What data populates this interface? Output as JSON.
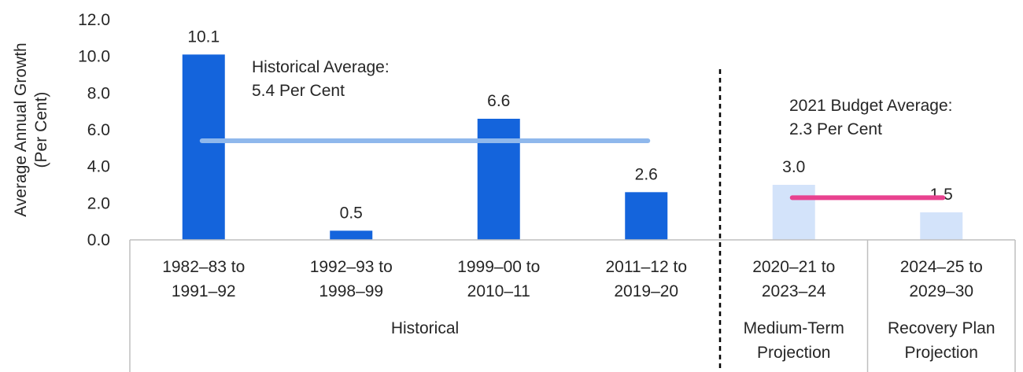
{
  "chart_data": {
    "type": "bar",
    "ylabel": [
      "Average Annual Growth",
      "(Per Cent)"
    ],
    "ylim": [
      0,
      12
    ],
    "yticks": [
      "0.0",
      "2.0",
      "4.0",
      "6.0",
      "8.0",
      "10.0",
      "12.0"
    ],
    "grid": false,
    "categories": [
      [
        "1982–83 to",
        "1991–92"
      ],
      [
        "1992–93 to",
        "1998–99"
      ],
      [
        "1999–00 to",
        "2010–11"
      ],
      [
        "2011–12 to",
        "2019–20"
      ],
      [
        "2020–21 to",
        "2023–24"
      ],
      [
        "2024–25 to",
        "2029–30"
      ]
    ],
    "values": [
      10.1,
      0.5,
      6.6,
      2.6,
      3.0,
      1.5
    ],
    "data_labels": [
      "10.1",
      "0.5",
      "6.6",
      "2.6",
      "3.0",
      "1.5"
    ],
    "bar_colors": [
      "#1464DC",
      "#1464DC",
      "#1464DC",
      "#1464DC",
      "#D3E3FA",
      "#D3E3FA"
    ],
    "groups": [
      {
        "label": [
          "Historical"
        ],
        "categories": [
          0,
          1,
          2,
          3
        ]
      },
      {
        "label": [
          "Medium-Term",
          "Projection"
        ],
        "categories": [
          4
        ]
      },
      {
        "label": [
          "Recovery Plan",
          "Projection"
        ],
        "categories": [
          5
        ]
      }
    ],
    "reference_lines": [
      {
        "label": [
          "Historical Average:",
          "5.4 Per Cent"
        ],
        "value": 5.4,
        "from_category": 0,
        "to_category": 3,
        "color": "#8FB8EC"
      },
      {
        "label": [
          "2021 Budget Average:",
          "2.3 Per Cent"
        ],
        "value": 2.3,
        "from_category": 4,
        "to_category": 5,
        "color": "#E8428F"
      }
    ]
  }
}
